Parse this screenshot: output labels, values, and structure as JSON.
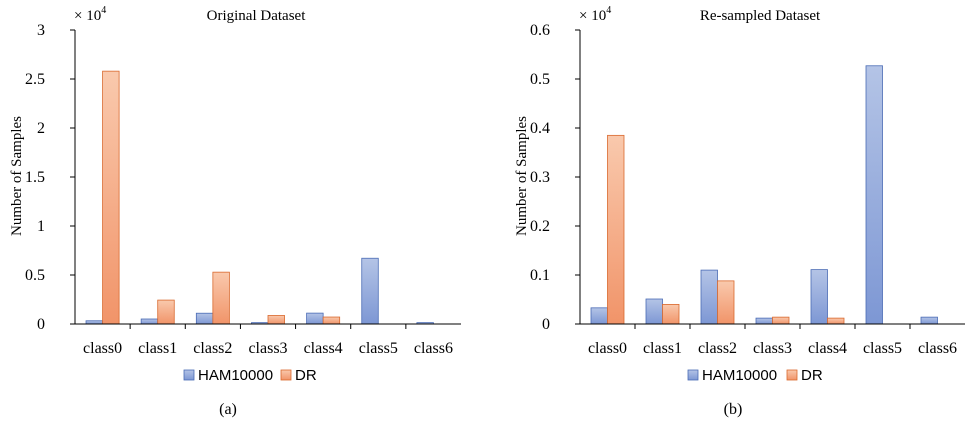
{
  "colors": {
    "HAM10000_fill_top": "#b4c4e6",
    "HAM10000_fill_bottom": "#7d97d4",
    "HAM10000_stroke": "#4a6bb5",
    "DR_fill_top": "#f9c9ad",
    "DR_fill_bottom": "#f19469",
    "DR_stroke": "#d9692e"
  },
  "chart_data": [
    {
      "type": "bar",
      "title": "Original Dataset",
      "scale_label": "× 10",
      "scale_exponent": "4",
      "ylabel": "Number of Samples",
      "ylim": [
        0,
        3
      ],
      "yticks": [
        "0",
        "0.5",
        "1",
        "1.5",
        "2",
        "2.5",
        "3"
      ],
      "categories": [
        "class0",
        "class1",
        "class2",
        "class3",
        "class4",
        "class5",
        "class6"
      ],
      "series": [
        {
          "name": "HAM10000",
          "values": [
            0.033,
            0.051,
            0.11,
            0.014,
            0.111,
            0.671,
            0.014
          ]
        },
        {
          "name": "DR",
          "values": [
            2.58,
            0.244,
            0.529,
            0.087,
            0.071,
            0,
            0
          ]
        }
      ],
      "legend_position": "bottom",
      "caption": "(a)"
    },
    {
      "type": "bar",
      "title": "Re-sampled Dataset",
      "scale_label": "× 10",
      "scale_exponent": "4",
      "ylabel": "Number of Samples",
      "ylim": [
        0,
        0.6
      ],
      "yticks": [
        "0",
        "0.1",
        "0.2",
        "0.3",
        "0.4",
        "0.5",
        "0.6"
      ],
      "categories": [
        "class0",
        "class1",
        "class2",
        "class3",
        "class4",
        "class5",
        "class6"
      ],
      "series": [
        {
          "name": "HAM10000",
          "values": [
            0.033,
            0.051,
            0.11,
            0.012,
            0.111,
            0.527,
            0.014
          ]
        },
        {
          "name": "DR",
          "values": [
            0.385,
            0.04,
            0.088,
            0.014,
            0.012,
            0,
            0
          ]
        }
      ],
      "legend_position": "bottom",
      "caption": "(b)"
    }
  ]
}
